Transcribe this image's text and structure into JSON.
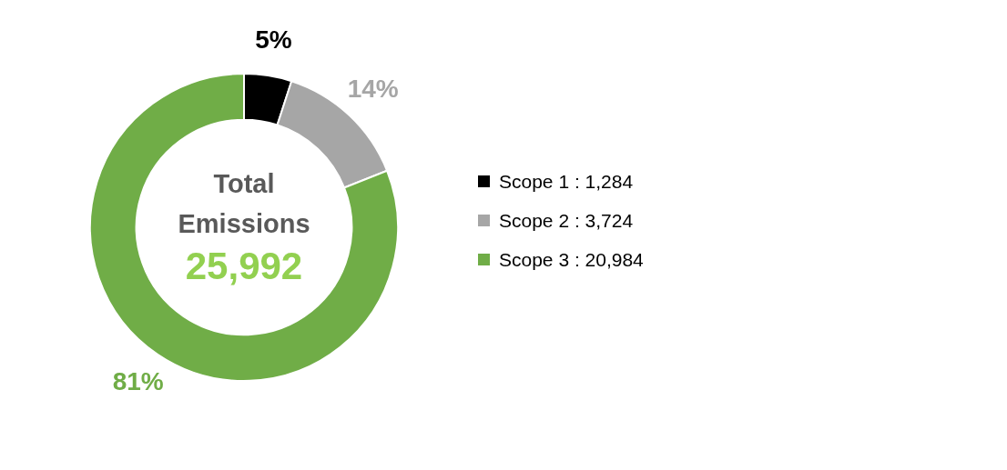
{
  "chart_data": {
    "type": "donut",
    "categories": [
      "Scope 1 : 1,284",
      "Scope 2 : 3,724",
      "Scope 3 : 20,984"
    ],
    "values": [
      5,
      14,
      81
    ],
    "colors": [
      "#000000",
      "#a6a6a6",
      "#70ad47"
    ],
    "value_labels": [
      "5%",
      "14%",
      "81%"
    ],
    "annotations": [
      "Total Emissions",
      "25,992"
    ],
    "legend": "right"
  }
}
